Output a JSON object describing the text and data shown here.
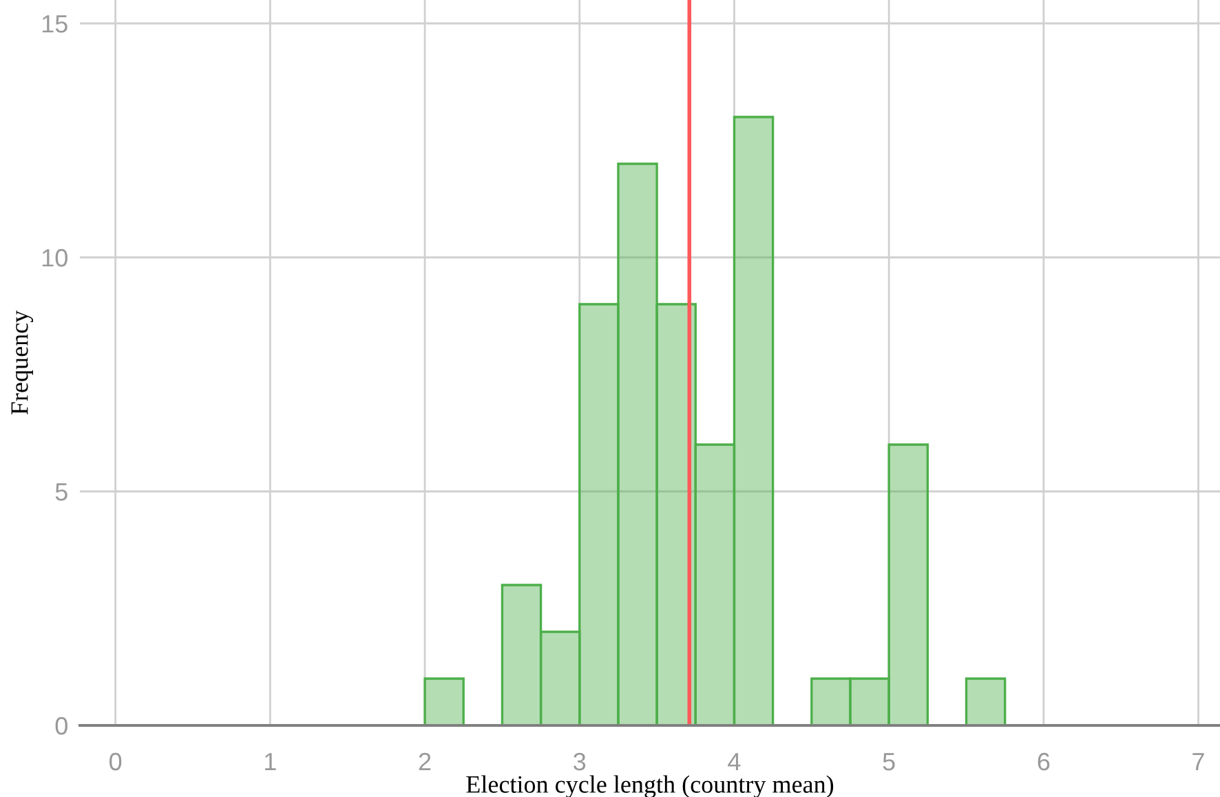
{
  "chart_data": {
    "type": "histogram",
    "xlabel": "Election cycle length (country mean)",
    "ylabel": "Frequency",
    "bins": [
      2.0,
      2.25,
      2.5,
      2.75,
      3.0,
      3.25,
      3.5,
      3.75,
      4.0,
      4.25,
      4.5,
      4.75,
      5.0,
      5.25,
      5.5,
      5.75
    ],
    "values": [
      1,
      0,
      3,
      2,
      9,
      12,
      9,
      6,
      13,
      0,
      1,
      1,
      6,
      0,
      1
    ],
    "color": "#4daf4a",
    "xlim": [
      -0.23,
      7.14
    ],
    "ylim": [
      0,
      15.5
    ],
    "xticks": [
      0,
      1,
      2,
      3,
      4,
      5,
      6,
      7
    ],
    "yticks": [
      0,
      5,
      10,
      15
    ],
    "grid": true,
    "ref_lines": [
      {
        "axis": "x",
        "value": 3.71,
        "color": "#ff5a5a"
      }
    ]
  }
}
